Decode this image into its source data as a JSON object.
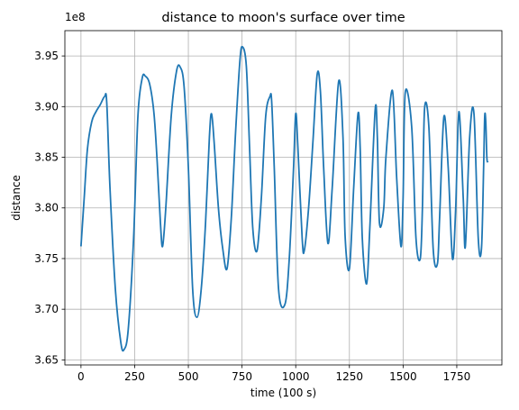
{
  "chart_data": {
    "type": "line",
    "title": "distance to moon's surface over time",
    "xlabel": "time (100 s)",
    "ylabel": "distance",
    "y_offset_label": "1e8",
    "xlim": [
      -75,
      1960
    ],
    "ylim": [
      364500000,
      397500000
    ],
    "grid": true,
    "x_ticks": [
      0,
      250,
      500,
      750,
      1000,
      1250,
      1500,
      1750
    ],
    "x_tick_labels": [
      "0",
      "250",
      "500",
      "750",
      "1000",
      "1250",
      "1500",
      "1750"
    ],
    "y_ticks": [
      365000000,
      370000000,
      375000000,
      380000000,
      385000000,
      390000000,
      395000000
    ],
    "y_tick_labels": [
      "3.65",
      "3.70",
      "3.75",
      "3.80",
      "3.85",
      "3.90",
      "3.95"
    ],
    "series": [
      {
        "color": "#1f77b4",
        "x": [
          0,
          15,
          30,
          50,
          70,
          90,
          110,
          120,
          135,
          160,
          185,
          200,
          220,
          245,
          265,
          285,
          300,
          320,
          340,
          355,
          370,
          380,
          395,
          420,
          445,
          462,
          480,
          500,
          520,
          540,
          560,
          580,
          598,
          608,
          620,
          640,
          660,
          680,
          700,
          720,
          740,
          752,
          770,
          785,
          800,
          820,
          840,
          860,
          880,
          888,
          900,
          920,
          950,
          970,
          990,
          1000,
          1010,
          1030,
          1040,
          1060,
          1080,
          1100,
          1115,
          1130,
          1150,
          1170,
          1200,
          1220,
          1230,
          1250,
          1270,
          1290,
          1300,
          1310,
          1330,
          1345,
          1370,
          1380,
          1390,
          1410,
          1420,
          1450,
          1470,
          1490,
          1500,
          1510,
          1540,
          1560,
          1580,
          1590,
          1600,
          1620,
          1640,
          1660,
          1670,
          1690,
          1710,
          1730,
          1745,
          1760,
          1780,
          1790,
          1810,
          1830,
          1850,
          1865,
          1875,
          1880,
          1885,
          1890,
          1895
        ],
        "y": [
          376200000,
          381000000,
          385800000,
          388500000,
          389500000,
          390200000,
          391000000,
          390400000,
          382000000,
          372000000,
          366800000,
          366000000,
          368000000,
          377000000,
          389000000,
          392800000,
          393000000,
          392200000,
          389300000,
          384500000,
          378500000,
          376200000,
          380000000,
          389000000,
          393500000,
          393900000,
          392000000,
          384000000,
          372000000,
          369200000,
          372000000,
          378500000,
          387000000,
          389300000,
          386500000,
          380000000,
          376000000,
          374000000,
          379000000,
          387500000,
          394500000,
          395900000,
          394000000,
          386000000,
          378000000,
          375800000,
          381000000,
          389000000,
          391000000,
          390500000,
          384000000,
          372000000,
          370500000,
          375000000,
          384000000,
          389300000,
          386000000,
          377000000,
          375800000,
          380000000,
          386500000,
          393200000,
          391500000,
          384000000,
          376500000,
          382000000,
          392500000,
          387000000,
          377200000,
          374000000,
          382000000,
          389300000,
          386000000,
          377000000,
          372500000,
          378000000,
          389700000,
          387000000,
          378500000,
          380000000,
          385000000,
          391600000,
          383000000,
          376200000,
          381000000,
          391400000,
          388000000,
          377000000,
          375000000,
          380000000,
          389800000,
          388000000,
          376000000,
          374500000,
          379000000,
          389000000,
          384000000,
          375000000,
          380000000,
          389500000,
          381000000,
          376200000,
          387000000,
          389300000,
          377000000,
          376000000,
          384000000,
          389000000,
          388500000,
          385000000,
          384500000
        ]
      }
    ]
  }
}
